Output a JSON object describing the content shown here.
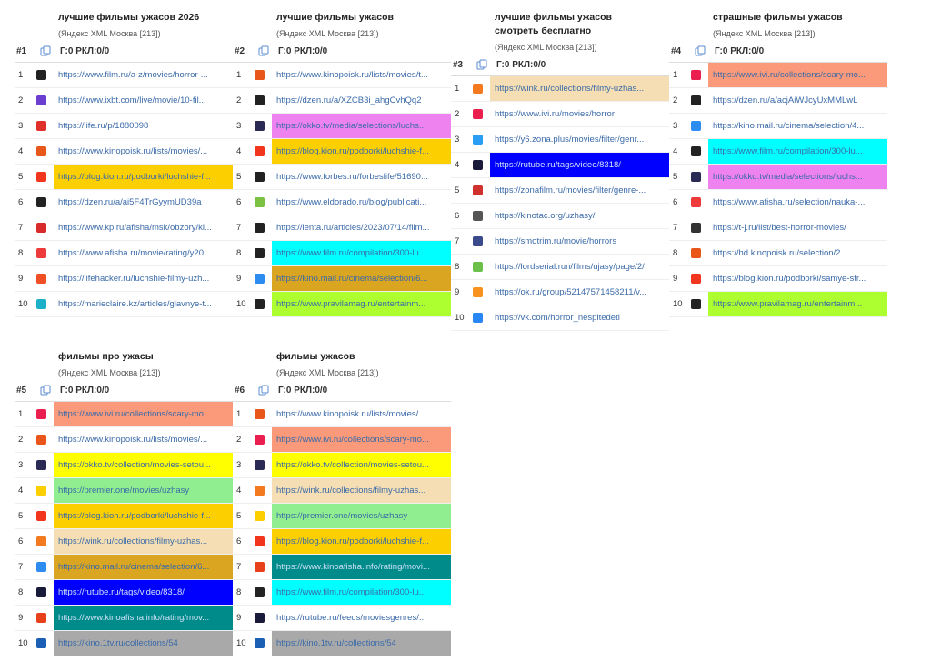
{
  "panels": [
    {
      "id": "#1",
      "title": "лучшие фильмы ужасов 2026",
      "subtitle": "(Яндекс XML Москва [213])",
      "header": "Г:0 РКЛ:0/0",
      "rows": [
        {
          "rank": 1,
          "icon": "#222222",
          "url": "https://www.film.ru/a-z/movies/horror-..."
        },
        {
          "rank": 2,
          "icon": "#6a3fd0",
          "url": "https://www.ixbt.com/live/movie/10-fil..."
        },
        {
          "rank": 3,
          "icon": "#e0302a",
          "url": "https://life.ru/p/1880098"
        },
        {
          "rank": 4,
          "icon": "#e8561a",
          "url": "https://www.kinopoisk.ru/lists/movies/..."
        },
        {
          "rank": 5,
          "icon": "#f2361d",
          "url": "https://blog.kion.ru/podborki/luchshie-f...",
          "color": "#fcd000"
        },
        {
          "rank": 6,
          "icon": "#222222",
          "url": "https://dzen.ru/a/ai5F4TrGyymUD39a"
        },
        {
          "rank": 7,
          "icon": "#d92b2b",
          "url": "https://www.kp.ru/afisha/msk/obzory/ki..."
        },
        {
          "rank": 8,
          "icon": "#ee3a3a",
          "url": "https://www.afisha.ru/movie/rating/y20..."
        },
        {
          "rank": 9,
          "icon": "#f04e23",
          "url": "https://lifehacker.ru/luchshie-filmy-uzh..."
        },
        {
          "rank": 10,
          "icon": "#1bb0c8",
          "url": "https://marieclaire.kz/articles/glavnye-t..."
        }
      ]
    },
    {
      "id": "#2",
      "title": "лучшие фильмы ужасов",
      "subtitle": "(Яндекс XML Москва [213])",
      "header": "Г:0 РКЛ:0/0",
      "rows": [
        {
          "rank": 1,
          "icon": "#e8561a",
          "url": "https://www.kinopoisk.ru/lists/movies/t..."
        },
        {
          "rank": 2,
          "icon": "#222222",
          "url": "https://dzen.ru/a/XZCB3i_ahgCvhQq2"
        },
        {
          "rank": 3,
          "icon": "#2a2a55",
          "url": "https://okko.tv/media/selections/luchs...",
          "color": "#ee82ee"
        },
        {
          "rank": 4,
          "icon": "#f2361d",
          "url": "https://blog.kion.ru/podborki/luchshie-f...",
          "color": "#fcd000"
        },
        {
          "rank": 5,
          "icon": "#222222",
          "url": "https://www.forbes.ru/forbeslife/51690..."
        },
        {
          "rank": 6,
          "icon": "#7cc242",
          "url": "https://www.eldorado.ru/blog/publicati..."
        },
        {
          "rank": 7,
          "icon": "#222222",
          "url": "https://lenta.ru/articles/2023/07/14/film..."
        },
        {
          "rank": 8,
          "icon": "#222222",
          "url": "https://www.film.ru/compilation/300-lu...",
          "color": "#00ffff"
        },
        {
          "rank": 9,
          "icon": "#2d8cf0",
          "url": "https://kino.mail.ru/cinema/selection/6...",
          "color": "#daa520"
        },
        {
          "rank": 10,
          "icon": "#222222",
          "url": "https://www.pravilamag.ru/entertainm...",
          "color": "#adff2f"
        }
      ]
    },
    {
      "id": "#3",
      "title": "лучшие фильмы ужасов смотреть бесплатно",
      "subtitle": "(Яндекс XML Москва [213])",
      "header": "Г:0 РКЛ:0/0",
      "rows": [
        {
          "rank": 1,
          "icon": "#f47a20",
          "url": "https://wink.ru/collections/filmy-uzhas...",
          "color": "#f5deb3"
        },
        {
          "rank": 2,
          "icon": "#ea1f4f",
          "url": "https://www.ivi.ru/movies/horror"
        },
        {
          "rank": 3,
          "icon": "#2a9df4",
          "url": "https://y6.zona.plus/movies/filter/genr..."
        },
        {
          "rank": 4,
          "icon": "#1a1a3a",
          "url": "https://rutube.ru/tags/video/8318/",
          "color": "#0000ff"
        },
        {
          "rank": 5,
          "icon": "#d0312d",
          "url": "https://zonafilm.ru/movies/filter/genre-..."
        },
        {
          "rank": 6,
          "icon": "#555555",
          "url": "https://kinotac.org/uzhasy/"
        },
        {
          "rank": 7,
          "icon": "#3a4a8a",
          "url": "https://smotrim.ru/movie/horrors"
        },
        {
          "rank": 8,
          "icon": "#6cc04a",
          "url": "https://lordserial.run/films/ujasy/page/2/"
        },
        {
          "rank": 9,
          "icon": "#f7931e",
          "url": "https://ok.ru/group/52147571458211/v..."
        },
        {
          "rank": 10,
          "icon": "#2787f5",
          "url": "https://vk.com/horror_nespitedeti"
        }
      ]
    },
    {
      "id": "#4",
      "title": "страшные фильмы ужасов",
      "subtitle": "(Яндекс XML Москва [213])",
      "header": "Г:0 РКЛ:0/0",
      "rows": [
        {
          "rank": 1,
          "icon": "#ea1f4f",
          "url": "https://www.ivi.ru/collections/scary-mo...",
          "color": "#fa9a7a"
        },
        {
          "rank": 2,
          "icon": "#222222",
          "url": "https://dzen.ru/a/acjAiWJcyUxMMLwL"
        },
        {
          "rank": 3,
          "icon": "#2d8cf0",
          "url": "https://kino.mail.ru/cinema/selection/4..."
        },
        {
          "rank": 4,
          "icon": "#222222",
          "url": "https://www.film.ru/compilation/300-lu...",
          "color": "#00ffff"
        },
        {
          "rank": 5,
          "icon": "#2a2a55",
          "url": "https://okko.tv/media/selections/luchs...",
          "color": "#ee82ee"
        },
        {
          "rank": 6,
          "icon": "#ee3a3a",
          "url": "https://www.afisha.ru/selection/nauka-..."
        },
        {
          "rank": 7,
          "icon": "#333333",
          "url": "https://t-j.ru/list/best-horror-movies/"
        },
        {
          "rank": 8,
          "icon": "#e8561a",
          "url": "https://hd.kinopoisk.ru/selection/2"
        },
        {
          "rank": 9,
          "icon": "#f2361d",
          "url": "https://blog.kion.ru/podborki/samye-str..."
        },
        {
          "rank": 10,
          "icon": "#222222",
          "url": "https://www.pravilamag.ru/entertainm...",
          "color": "#adff2f"
        }
      ]
    },
    {
      "id": "#5",
      "title": "фильмы про ужасы",
      "subtitle": "(Яндекс XML Москва [213])",
      "header": "Г:0 РКЛ:0/0",
      "rows": [
        {
          "rank": 1,
          "icon": "#ea1f4f",
          "url": "https://www.ivi.ru/collections/scary-mo...",
          "color": "#fa9a7a"
        },
        {
          "rank": 2,
          "icon": "#e8561a",
          "url": "https://www.kinopoisk.ru/lists/movies/..."
        },
        {
          "rank": 3,
          "icon": "#2a2a55",
          "url": "https://okko.tv/collection/movies-setou...",
          "color": "#ffff00"
        },
        {
          "rank": 4,
          "icon": "#fcd000",
          "url": "https://premier.one/movies/uzhasy",
          "color": "#90ee90"
        },
        {
          "rank": 5,
          "icon": "#f2361d",
          "url": "https://blog.kion.ru/podborki/luchshie-f...",
          "color": "#fcd000"
        },
        {
          "rank": 6,
          "icon": "#f47a20",
          "url": "https://wink.ru/collections/filmy-uzhas...",
          "color": "#f5deb3"
        },
        {
          "rank": 7,
          "icon": "#2d8cf0",
          "url": "https://kino.mail.ru/cinema/selection/6...",
          "color": "#daa520"
        },
        {
          "rank": 8,
          "icon": "#1a1a3a",
          "url": "https://rutube.ru/tags/video/8318/",
          "color": "#0000ff"
        },
        {
          "rank": 9,
          "icon": "#e8401a",
          "url": "https://www.kinoafisha.info/rating/mov...",
          "color": "#008b8b"
        },
        {
          "rank": 10,
          "icon": "#1a5fb4",
          "url": "https://kino.1tv.ru/collections/54",
          "color": "#a9a9a9"
        }
      ]
    },
    {
      "id": "#6",
      "title": "фильмы ужасов",
      "subtitle": "(Яндекс XML Москва [213])",
      "header": "Г:0 РКЛ:0/0",
      "rows": [
        {
          "rank": 1,
          "icon": "#e8561a",
          "url": "https://www.kinopoisk.ru/lists/movies/..."
        },
        {
          "rank": 2,
          "icon": "#ea1f4f",
          "url": "https://www.ivi.ru/collections/scary-mo...",
          "color": "#fa9a7a"
        },
        {
          "rank": 3,
          "icon": "#2a2a55",
          "url": "https://okko.tv/collection/movies-setou...",
          "color": "#ffff00"
        },
        {
          "rank": 4,
          "icon": "#f47a20",
          "url": "https://wink.ru/collections/filmy-uzhas...",
          "color": "#f5deb3"
        },
        {
          "rank": 5,
          "icon": "#fcd000",
          "url": "https://premier.one/movies/uzhasy",
          "color": "#90ee90"
        },
        {
          "rank": 6,
          "icon": "#f2361d",
          "url": "https://blog.kion.ru/podborki/luchshie-f...",
          "color": "#fcd000"
        },
        {
          "rank": 7,
          "icon": "#e8401a",
          "url": "https://www.kinoafisha.info/rating/movi...",
          "color": "#008b8b"
        },
        {
          "rank": 8,
          "icon": "#222222",
          "url": "https://www.film.ru/compilation/300-lu...",
          "color": "#00ffff"
        },
        {
          "rank": 9,
          "icon": "#1a1a3a",
          "url": "https://rutube.ru/feeds/moviesgenres/..."
        },
        {
          "rank": 10,
          "icon": "#1a5fb4",
          "url": "https://kino.1tv.ru/collections/54",
          "color": "#a9a9a9"
        }
      ]
    }
  ]
}
